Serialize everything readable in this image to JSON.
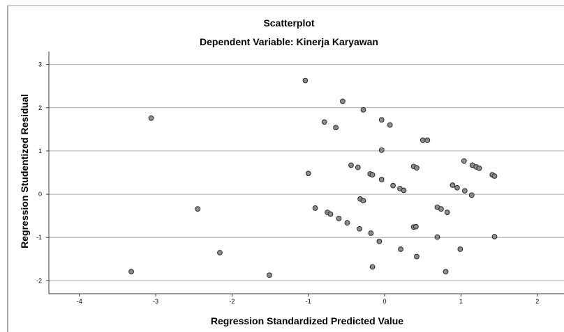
{
  "chart_data": {
    "type": "scatter",
    "title": "Scatterplot",
    "subtitle": "Dependent Variable: Kinerja Karyawan",
    "xlabel": "Regression Standardized Predicted Value",
    "ylabel": "Regression Studentized Residual",
    "xlim": [
      -4.4,
      2.35
    ],
    "ylim": [
      -2.3,
      3.3
    ],
    "xticks": [
      -4,
      -3,
      -2,
      -1,
      0,
      1,
      2
    ],
    "yticks": [
      -2,
      -1,
      0,
      1,
      2,
      3
    ],
    "grid": "horizontal",
    "colors": {
      "marker_fill": "#8c8c8c",
      "marker_stroke": "#2a2a2a",
      "grid": "#a8a8a8",
      "axis": "#333333"
    },
    "points": [
      {
        "x": -3.32,
        "y": -1.79
      },
      {
        "x": -3.06,
        "y": 1.76
      },
      {
        "x": -2.45,
        "y": -0.34
      },
      {
        "x": -2.16,
        "y": -1.35
      },
      {
        "x": -1.51,
        "y": -1.87
      },
      {
        "x": -1.04,
        "y": 2.63
      },
      {
        "x": -1.0,
        "y": 0.48
      },
      {
        "x": -0.91,
        "y": -0.32
      },
      {
        "x": -0.79,
        "y": 1.67
      },
      {
        "x": -0.75,
        "y": -0.42
      },
      {
        "x": -0.71,
        "y": -0.46
      },
      {
        "x": -0.64,
        "y": 1.54
      },
      {
        "x": -0.6,
        "y": -0.56
      },
      {
        "x": -0.55,
        "y": 2.15
      },
      {
        "x": -0.49,
        "y": -0.66
      },
      {
        "x": -0.44,
        "y": 0.67
      },
      {
        "x": -0.35,
        "y": 0.62
      },
      {
        "x": -0.33,
        "y": -0.8
      },
      {
        "x": -0.32,
        "y": -0.11
      },
      {
        "x": -0.28,
        "y": 1.95
      },
      {
        "x": -0.28,
        "y": -0.15
      },
      {
        "x": -0.19,
        "y": 0.47
      },
      {
        "x": -0.18,
        "y": -0.9
      },
      {
        "x": -0.16,
        "y": 0.45
      },
      {
        "x": -0.16,
        "y": -1.68
      },
      {
        "x": -0.07,
        "y": -1.09
      },
      {
        "x": -0.04,
        "y": 1.72
      },
      {
        "x": -0.04,
        "y": 1.02
      },
      {
        "x": -0.04,
        "y": 0.34
      },
      {
        "x": 0.07,
        "y": 1.6
      },
      {
        "x": 0.11,
        "y": 0.2
      },
      {
        "x": 0.2,
        "y": 0.13
      },
      {
        "x": 0.21,
        "y": -1.27
      },
      {
        "x": 0.25,
        "y": 0.09
      },
      {
        "x": 0.38,
        "y": 0.64
      },
      {
        "x": 0.38,
        "y": -0.76
      },
      {
        "x": 0.41,
        "y": -0.75
      },
      {
        "x": 0.42,
        "y": 0.61
      },
      {
        "x": 0.42,
        "y": -1.44
      },
      {
        "x": 0.5,
        "y": 1.25
      },
      {
        "x": 0.56,
        "y": 1.25
      },
      {
        "x": 0.69,
        "y": -0.3
      },
      {
        "x": 0.69,
        "y": -0.99
      },
      {
        "x": 0.74,
        "y": -0.34
      },
      {
        "x": 0.8,
        "y": -1.79
      },
      {
        "x": 0.82,
        "y": -0.42
      },
      {
        "x": 0.89,
        "y": 0.21
      },
      {
        "x": 0.95,
        "y": 0.15
      },
      {
        "x": 0.99,
        "y": -1.27
      },
      {
        "x": 1.04,
        "y": 0.77
      },
      {
        "x": 1.05,
        "y": 0.08
      },
      {
        "x": 1.14,
        "y": -0.02
      },
      {
        "x": 1.15,
        "y": 0.67
      },
      {
        "x": 1.2,
        "y": 0.63
      },
      {
        "x": 1.24,
        "y": 0.6
      },
      {
        "x": 1.41,
        "y": 0.45
      },
      {
        "x": 1.44,
        "y": 0.42
      },
      {
        "x": 1.44,
        "y": -0.98
      }
    ]
  }
}
